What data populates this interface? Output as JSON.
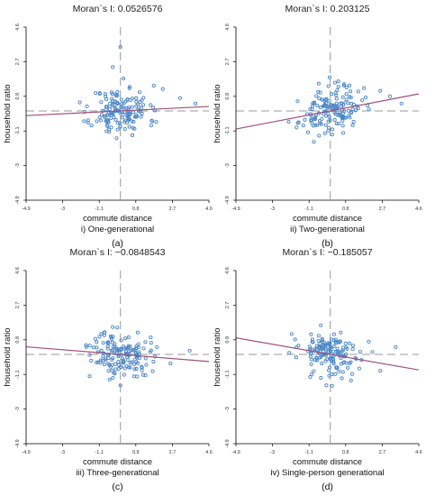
{
  "axis_tick_labels": [
    "-4.9",
    "-3",
    "-1.1",
    "0.8",
    "2.7",
    "4.6"
  ],
  "y_axis_tick_labels": [
    "4.6",
    "2.7",
    "0.8",
    "-1.1",
    "-3",
    "-4.9"
  ],
  "colors": {
    "points": "#4a86c8",
    "regression_line": "#a0507a",
    "reference_lines": "#9a9a9a",
    "axes": "#000000"
  },
  "chart_data": [
    {
      "type": "scatter",
      "title": "Moran`s I: 0.0526576",
      "xlabel": "commute distance",
      "ylabel": "household ratio",
      "subtitle": "i) One-generational",
      "panel_label": "(a)",
      "xlim": [
        -4.9,
        4.6
      ],
      "ylim": [
        -4.9,
        4.6
      ],
      "x_ticks": [
        -4.9,
        -3,
        -1.1,
        0.8,
        2.7,
        4.6
      ],
      "y_ticks": [
        4.6,
        2.7,
        0.8,
        -1.1,
        -3,
        -4.9
      ],
      "reference_x": 0,
      "reference_y": 0,
      "regression": {
        "slope": 0.0526576,
        "intercept": 0
      },
      "points": {
        "n": 150,
        "seed": 11,
        "mean": [
          0,
          0
        ],
        "sd": [
          0.75,
          0.65
        ],
        "extras": [
          [
            0.0,
            3.5
          ],
          [
            -0.4,
            2.4
          ],
          [
            2.2,
            1.2
          ],
          [
            3.1,
            0.7
          ],
          [
            3.9,
            0.4
          ],
          [
            1.6,
            -0.8
          ],
          [
            -0.2,
            -1.5
          ]
        ]
      }
    },
    {
      "type": "scatter",
      "title": "Moran`s I: 0.203125",
      "xlabel": "commute distance",
      "ylabel": "household ratio",
      "subtitle": "ii) Two-generational",
      "panel_label": "(b)",
      "xlim": [
        -4.9,
        4.6
      ],
      "ylim": [
        -4.9,
        4.6
      ],
      "x_ticks": [
        -4.9,
        -3,
        -1.1,
        0.8,
        2.7,
        4.6
      ],
      "y_ticks": [
        4.6,
        2.7,
        0.8,
        -1.1,
        -3,
        -4.9
      ],
      "reference_x": 0,
      "reference_y": 0,
      "regression": {
        "slope": 0.203125,
        "intercept": 0
      },
      "points": {
        "n": 150,
        "seed": 23,
        "mean": [
          0,
          0
        ],
        "sd": [
          0.8,
          0.6
        ],
        "extras": [
          [
            1.0,
            1.4
          ],
          [
            2.6,
            1.1
          ],
          [
            3.1,
            0.8
          ],
          [
            3.7,
            0.4
          ],
          [
            -0.6,
            1.5
          ],
          [
            -1.4,
            -0.8
          ],
          [
            0.1,
            -1.3
          ]
        ]
      }
    },
    {
      "type": "scatter",
      "title": "Moran`s I: −0.0848543",
      "xlabel": "commute distance",
      "ylabel": "household ratio",
      "subtitle": "iii) Three-generational",
      "panel_label": "(c)",
      "xlim": [
        -4.9,
        4.6
      ],
      "ylim": [
        -4.9,
        4.6
      ],
      "x_ticks": [
        -4.9,
        -3,
        -1.1,
        0.8,
        2.7,
        4.6
      ],
      "y_ticks": [
        4.6,
        2.7,
        0.8,
        -1.1,
        -3,
        -4.9
      ],
      "reference_x": 0,
      "reference_y": 0,
      "regression": {
        "slope": -0.0848543,
        "intercept": 0
      },
      "points": {
        "n": 150,
        "seed": 37,
        "mean": [
          0,
          0
        ],
        "sd": [
          0.75,
          0.6
        ],
        "extras": [
          [
            -0.4,
            1.5
          ],
          [
            0.9,
            1.2
          ],
          [
            1.9,
            0.4
          ],
          [
            3.6,
            0.2
          ],
          [
            2.6,
            -0.5
          ],
          [
            0.0,
            -1.7
          ],
          [
            -1.6,
            -1.2
          ]
        ]
      }
    },
    {
      "type": "scatter",
      "title": "Moran`s I: −0.185057",
      "xlabel": "commute distance",
      "ylabel": "household ratio",
      "subtitle": "iv) Single-person generational",
      "panel_label": "(d)",
      "xlim": [
        -4.9,
        4.6
      ],
      "ylim": [
        -4.9,
        4.6
      ],
      "x_ticks": [
        -4.9,
        -3,
        -1.1,
        0.8,
        2.7,
        4.6
      ],
      "y_ticks": [
        4.6,
        2.7,
        0.8,
        -1.1,
        -3,
        -4.9
      ],
      "reference_x": 0,
      "reference_y": 0,
      "regression": {
        "slope": -0.185057,
        "intercept": 0
      },
      "points": {
        "n": 150,
        "seed": 53,
        "mean": [
          0,
          0
        ],
        "sd": [
          0.8,
          0.6
        ],
        "extras": [
          [
            -1.0,
            1.1
          ],
          [
            0.2,
            1.1
          ],
          [
            1.0,
            0.6
          ],
          [
            2.0,
            0.7
          ],
          [
            3.4,
            0.4
          ],
          [
            2.6,
            -0.9
          ],
          [
            -0.2,
            -1.7
          ]
        ]
      }
    }
  ]
}
